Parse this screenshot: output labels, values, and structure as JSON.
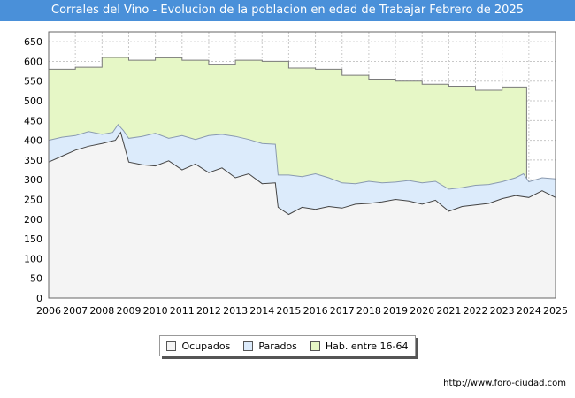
{
  "title": "Corrales del Vino - Evolucion de la poblacion en edad de Trabajar Febrero de 2025",
  "source": "http://www.foro-ciudad.com",
  "colors": {
    "title_bg": "#4a90d9",
    "hab_fill": "#e6f7c6",
    "hab_line": "#7a7a7a",
    "parados_fill": "#dcebfb",
    "parados_line": "#8a9ab0",
    "ocupados_fill": "#f4f4f4",
    "ocupados_line": "#444444"
  },
  "chart_data": {
    "type": "area",
    "title": "Corrales del Vino - Evolucion de la poblacion en edad de Trabajar Febrero de 2025",
    "xlabel": "",
    "ylabel": "",
    "xlim": [
      2006,
      2025
    ],
    "ylim": [
      0,
      675
    ],
    "yticks": [
      0,
      50,
      100,
      150,
      200,
      250,
      300,
      350,
      400,
      450,
      500,
      550,
      600,
      650
    ],
    "xticks": [
      2006,
      2007,
      2008,
      2009,
      2010,
      2011,
      2012,
      2013,
      2014,
      2015,
      2016,
      2017,
      2018,
      2019,
      2020,
      2021,
      2022,
      2023,
      2024,
      2025
    ],
    "legend": [
      "Ocupados",
      "Parados",
      "Hab. entre 16-64"
    ],
    "legend_placement": "bottom-center",
    "series": [
      {
        "name": "Hab. entre 16-64",
        "type": "step",
        "x": [
          2006,
          2007,
          2008,
          2009,
          2010,
          2011,
          2012,
          2013,
          2014,
          2015,
          2016,
          2017,
          2018,
          2019,
          2020,
          2021,
          2022,
          2023,
          2023.92
        ],
        "values": [
          580,
          585,
          610,
          603,
          609,
          603,
          593,
          603,
          600,
          583,
          580,
          565,
          555,
          550,
          542,
          537,
          527,
          535,
          535
        ]
      },
      {
        "name": "Parados",
        "x": [
          2006,
          2006.5,
          2007,
          2007.5,
          2008,
          2008.4,
          2008.6,
          2008.8,
          2009,
          2009.5,
          2010,
          2010.5,
          2011,
          2011.5,
          2012,
          2012.5,
          2013,
          2013.5,
          2014,
          2014.5,
          2014.6,
          2015,
          2015.5,
          2016,
          2016.5,
          2017,
          2017.5,
          2018,
          2018.5,
          2019,
          2019.5,
          2020,
          2020.5,
          2021,
          2021.5,
          2022,
          2022.5,
          2023,
          2023.5,
          2023.8,
          2024,
          2024.5,
          2025
        ],
        "values": [
          400,
          408,
          412,
          422,
          415,
          420,
          440,
          425,
          405,
          410,
          418,
          405,
          412,
          402,
          412,
          415,
          410,
          402,
          392,
          390,
          312,
          312,
          308,
          315,
          305,
          292,
          290,
          296,
          292,
          294,
          298,
          292,
          296,
          276,
          280,
          286,
          288,
          295,
          305,
          315,
          295,
          305,
          302
        ]
      },
      {
        "name": "Ocupados",
        "x": [
          2006,
          2006.5,
          2007,
          2007.5,
          2008,
          2008.5,
          2008.7,
          2009,
          2009.5,
          2010,
          2010.5,
          2011,
          2011.5,
          2012,
          2012.5,
          2013,
          2013.5,
          2014,
          2014.5,
          2014.6,
          2015,
          2015.5,
          2016,
          2016.5,
          2017,
          2017.5,
          2018,
          2018.5,
          2019,
          2019.5,
          2020,
          2020.5,
          2021,
          2021.5,
          2022,
          2022.5,
          2023,
          2023.5,
          2024,
          2024.5,
          2025
        ],
        "values": [
          345,
          360,
          375,
          385,
          392,
          400,
          420,
          345,
          338,
          335,
          348,
          325,
          340,
          318,
          330,
          305,
          315,
          290,
          292,
          230,
          212,
          230,
          225,
          232,
          228,
          238,
          240,
          244,
          250,
          246,
          238,
          248,
          220,
          232,
          236,
          240,
          252,
          260,
          255,
          272,
          255
        ]
      }
    ]
  }
}
